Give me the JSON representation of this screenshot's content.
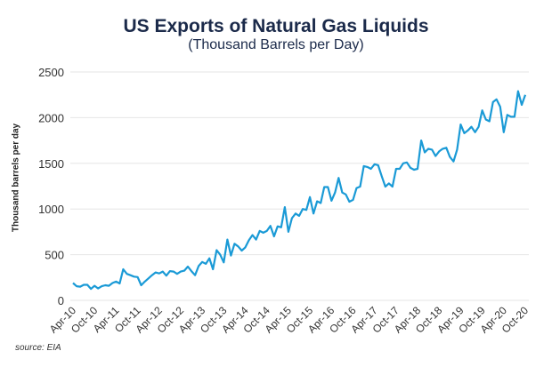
{
  "chart_data": {
    "type": "line",
    "title": "US Exports of Natural Gas Liquids",
    "subtitle": "(Thousand Barrels per Day)",
    "xlabel": "",
    "ylabel": "Thousand barrels per day",
    "ylim": [
      0,
      2500
    ],
    "yticks": [
      0,
      500,
      1000,
      1500,
      2000,
      2500
    ],
    "xtick_labels": [
      "Apr-10",
      "Oct-10",
      "Apr-11",
      "Oct-11",
      "Apr-12",
      "Oct-12",
      "Apr-13",
      "Oct-13",
      "Apr-14",
      "Oct-14",
      "Apr-15",
      "Oct-15",
      "Apr-16",
      "Oct-16",
      "Apr-17",
      "Oct-17",
      "Apr-18",
      "Oct-18",
      "Apr-19",
      "Oct-19",
      "Apr-20",
      "Oct-20"
    ],
    "grid": "horizontal",
    "line_color": "#1a9ad6",
    "x": [
      "Apr-10",
      "May-10",
      "Jun-10",
      "Jul-10",
      "Aug-10",
      "Sep-10",
      "Oct-10",
      "Nov-10",
      "Dec-10",
      "Jan-11",
      "Feb-11",
      "Mar-11",
      "Apr-11",
      "May-11",
      "Jun-11",
      "Jul-11",
      "Aug-11",
      "Sep-11",
      "Oct-11",
      "Nov-11",
      "Dec-11",
      "Jan-12",
      "Feb-12",
      "Mar-12",
      "Apr-12",
      "May-12",
      "Jun-12",
      "Jul-12",
      "Aug-12",
      "Sep-12",
      "Oct-12",
      "Nov-12",
      "Dec-12",
      "Jan-13",
      "Feb-13",
      "Mar-13",
      "Apr-13",
      "May-13",
      "Jun-13",
      "Jul-13",
      "Aug-13",
      "Sep-13",
      "Oct-13",
      "Nov-13",
      "Dec-13",
      "Jan-14",
      "Feb-14",
      "Mar-14",
      "Apr-14",
      "May-14",
      "Jun-14",
      "Jul-14",
      "Aug-14",
      "Sep-14",
      "Oct-14",
      "Nov-14",
      "Dec-14",
      "Jan-15",
      "Feb-15",
      "Mar-15",
      "Apr-15",
      "May-15",
      "Jun-15",
      "Jul-15",
      "Aug-15",
      "Sep-15",
      "Oct-15",
      "Nov-15",
      "Dec-15",
      "Jan-16",
      "Feb-16",
      "Mar-16",
      "Apr-16",
      "May-16",
      "Jun-16",
      "Jul-16",
      "Aug-16",
      "Sep-16",
      "Oct-16",
      "Nov-16",
      "Dec-16",
      "Jan-17",
      "Feb-17",
      "Mar-17",
      "Apr-17",
      "May-17",
      "Jun-17",
      "Jul-17",
      "Aug-17",
      "Sep-17",
      "Oct-17",
      "Nov-17",
      "Dec-17",
      "Jan-18",
      "Feb-18",
      "Mar-18",
      "Apr-18",
      "May-18",
      "Jun-18",
      "Jul-18",
      "Aug-18",
      "Sep-18",
      "Oct-18",
      "Nov-18",
      "Dec-18",
      "Jan-19",
      "Feb-19",
      "Mar-19",
      "Apr-19",
      "May-19",
      "Jun-19",
      "Jul-19",
      "Aug-19",
      "Sep-19",
      "Oct-19",
      "Nov-19",
      "Dec-19",
      "Jan-20",
      "Feb-20",
      "Mar-20",
      "Apr-20",
      "May-20",
      "Jun-20",
      "Jul-20",
      "Aug-20",
      "Sep-20",
      "Oct-20"
    ],
    "values": [
      190,
      155,
      150,
      170,
      170,
      125,
      160,
      130,
      155,
      165,
      160,
      190,
      205,
      185,
      340,
      290,
      275,
      260,
      255,
      165,
      205,
      240,
      275,
      305,
      295,
      315,
      270,
      320,
      315,
      290,
      315,
      325,
      370,
      320,
      275,
      375,
      420,
      400,
      460,
      340,
      550,
      500,
      415,
      665,
      490,
      620,
      590,
      545,
      580,
      660,
      715,
      665,
      760,
      740,
      760,
      815,
      700,
      810,
      800,
      1020,
      750,
      900,
      950,
      925,
      1000,
      990,
      1130,
      950,
      1085,
      1065,
      1240,
      1240,
      1090,
      1180,
      1340,
      1180,
      1160,
      1080,
      1100,
      1230,
      1245,
      1470,
      1460,
      1440,
      1490,
      1480,
      1360,
      1245,
      1280,
      1245,
      1440,
      1440,
      1500,
      1510,
      1450,
      1430,
      1440,
      1750,
      1620,
      1660,
      1650,
      1580,
      1630,
      1660,
      1670,
      1570,
      1520,
      1650,
      1925,
      1830,
      1860,
      1900,
      1840,
      1900,
      2080,
      1980,
      1960,
      2170,
      2200,
      2120,
      1840,
      2030,
      2010,
      2010,
      2290,
      2140,
      2250
    ]
  },
  "source": "source: EIA"
}
